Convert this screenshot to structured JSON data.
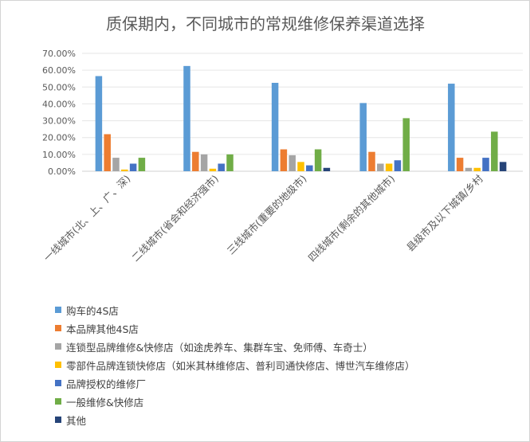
{
  "chart_data": {
    "type": "bar",
    "title": "质保期内，不同城市的常规维修保养渠道选择",
    "xlabel": "",
    "ylabel": "",
    "ylim": [
      0,
      0.7
    ],
    "yticks": [
      "0.00%",
      "10.00%",
      "20.00%",
      "30.00%",
      "40.00%",
      "50.00%",
      "60.00%",
      "70.00%"
    ],
    "grid": true,
    "legend_position": "bottom",
    "categories": [
      "一线城市(北、上、广、深)",
      "二线城市(省会和经济强市)",
      "三线城市(重要的地级市)",
      "四线城市(剩余的其他城市)",
      "县级市及以下城镇/乡村"
    ],
    "series": [
      {
        "name": "购车的4S店",
        "color": "#5B9BD5",
        "values": [
          0.565,
          0.625,
          0.525,
          0.405,
          0.52
        ]
      },
      {
        "name": "本品牌其他4S店",
        "color": "#ED7D31",
        "values": [
          0.22,
          0.115,
          0.13,
          0.115,
          0.08
        ]
      },
      {
        "name": "连锁型品牌维修&快修店（如途虎养车、集群车宝、免师傅、车奇士）",
        "color": "#A5A5A5",
        "values": [
          0.08,
          0.1,
          0.095,
          0.045,
          0.02
        ]
      },
      {
        "name": "零部件品牌连锁快修店（如米其林维修店、普利司通快修店、博世汽车维修店）",
        "color": "#FFC000",
        "values": [
          0.01,
          0.015,
          0.055,
          0.045,
          0.02
        ]
      },
      {
        "name": "品牌授权的维修厂",
        "color": "#4472C4",
        "values": [
          0.045,
          0.045,
          0.035,
          0.065,
          0.08
        ]
      },
      {
        "name": "一般维修&快修店",
        "color": "#70AD47",
        "values": [
          0.08,
          0.1,
          0.13,
          0.315,
          0.235
        ]
      },
      {
        "name": "其他",
        "color": "#264478",
        "values": [
          0.0,
          0.0,
          0.02,
          0.0,
          0.055
        ]
      }
    ]
  }
}
